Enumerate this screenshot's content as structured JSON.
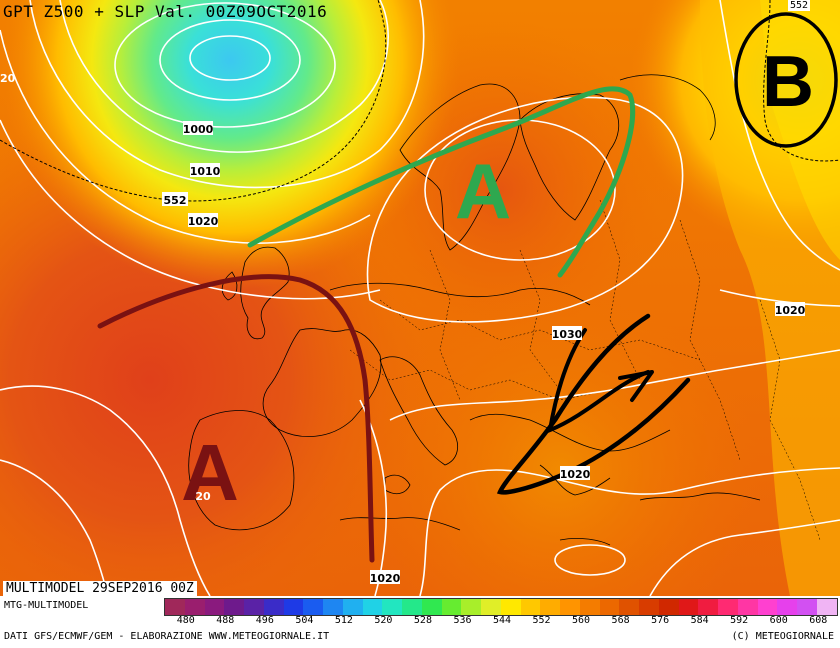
{
  "title": "GPT Z500 + SLP Val. 00Z09OCT2016",
  "top_right_tag": "552",
  "run_label": "MULTIMODEL 29SEP2016 00Z",
  "model_label": "MTG-MULTIMODEL",
  "source_label": "DATI GFS/ECMWF/GEM - ELABORAZIONE WWW.METEOGIORNALE.IT",
  "copyright": "(C) METEOGIORNALE",
  "left_edge_label": "20",
  "isobar_labels": [
    "1000",
    "1010",
    "552",
    "1020",
    "1030",
    "1020",
    "1020",
    "1020",
    "20"
  ],
  "pressure_systems": [
    {
      "letter": "A",
      "color": "#2ea84f",
      "meaning": "high pressure over Scandinavia"
    },
    {
      "letter": "A",
      "color": "#7a1212",
      "meaning": "high pressure over Iberia"
    },
    {
      "letter": "B",
      "color": "#000000",
      "meaning": "low pressure over Russia"
    }
  ],
  "colorbar": {
    "ticks": [
      "480",
      "488",
      "496",
      "504",
      "512",
      "520",
      "528",
      "536",
      "544",
      "552",
      "560",
      "568",
      "576",
      "584",
      "592",
      "600",
      "608"
    ],
    "colors": [
      "#a0285a",
      "#9a1e6e",
      "#8a1a7e",
      "#6e1a8c",
      "#5a22a6",
      "#3a2cc8",
      "#1e3ae6",
      "#1a5cf0",
      "#1e86f2",
      "#20b0f0",
      "#20d2e6",
      "#22e6c0",
      "#24e88a",
      "#30e850",
      "#66ec30",
      "#a8ee2a",
      "#e0ee28",
      "#ffe800",
      "#ffc800",
      "#ffac00",
      "#ff9400",
      "#f47c00",
      "#ec6800",
      "#e05200",
      "#d83c00",
      "#d02800",
      "#e01818",
      "#f01c40",
      "#ff2a72",
      "#ff36a4",
      "#ff40d0",
      "#e640ec",
      "#d250f2",
      "#f0b4f4"
    ]
  }
}
